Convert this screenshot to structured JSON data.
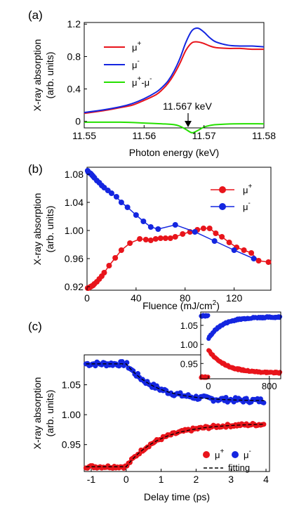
{
  "chart_data": [
    {
      "panel": "(a)",
      "type": "line",
      "xlabel": "Photon energy (keV)",
      "ylabel": [
        "X-ray absorption",
        "(arb. units)"
      ],
      "xlim": [
        11.55,
        11.58
      ],
      "ylim": [
        -0.08,
        1.22
      ],
      "xticks": [
        "11.55",
        "11.56",
        "11.57",
        "11.58"
      ],
      "yticks": [
        "0",
        "0.4",
        "0.8",
        "1.2"
      ],
      "annotation": "11.567 keV",
      "legend_position": "upper-left",
      "series": [
        {
          "name": "μ+",
          "legend_base": "μ",
          "legend_sup": "+",
          "color": "#e8141b",
          "x": [
            11.55,
            11.553,
            11.556,
            11.558,
            11.56,
            11.562,
            11.563,
            11.564,
            11.565,
            11.566,
            11.567,
            11.568,
            11.569,
            11.57,
            11.571,
            11.572,
            11.574,
            11.576,
            11.578,
            11.58
          ],
          "y": [
            0.1,
            0.13,
            0.17,
            0.2,
            0.26,
            0.33,
            0.39,
            0.47,
            0.58,
            0.72,
            0.88,
            0.97,
            0.98,
            0.96,
            0.93,
            0.91,
            0.9,
            0.9,
            0.89,
            0.89
          ]
        },
        {
          "name": "μ-",
          "legend_base": "μ",
          "legend_sup": "-",
          "color": "#1426e0",
          "x": [
            11.55,
            11.553,
            11.556,
            11.558,
            11.56,
            11.562,
            11.563,
            11.564,
            11.565,
            11.566,
            11.567,
            11.568,
            11.569,
            11.57,
            11.571,
            11.572,
            11.574,
            11.576,
            11.578,
            11.58
          ],
          "y": [
            0.11,
            0.14,
            0.18,
            0.22,
            0.28,
            0.36,
            0.42,
            0.5,
            0.62,
            0.78,
            0.98,
            1.12,
            1.15,
            1.1,
            1.03,
            0.98,
            0.94,
            0.93,
            0.93,
            0.92
          ]
        },
        {
          "name": "μ+-μ-",
          "legend_base": "μ",
          "legend_sup": "+",
          "legend_mid": "-μ",
          "legend_sup2": "-",
          "color": "#25e000",
          "x": [
            11.55,
            11.556,
            11.56,
            11.563,
            11.565,
            11.566,
            11.567,
            11.568,
            11.569,
            11.57,
            11.571,
            11.572,
            11.575,
            11.58
          ],
          "y": [
            -0.01,
            -0.01,
            -0.02,
            -0.03,
            -0.04,
            -0.06,
            -0.1,
            -0.14,
            -0.11,
            -0.07,
            -0.05,
            -0.04,
            -0.03,
            -0.03
          ]
        }
      ]
    },
    {
      "panel": "(b)",
      "type": "line",
      "xlabel": "Fluence (mJ/cm",
      "xlabel_sup": "2",
      "xlabel_end": ")",
      "ylabel": [
        "X-ray absorption",
        "(arb. units)"
      ],
      "xlim": [
        0,
        150
      ],
      "ylim": [
        0.915,
        1.09
      ],
      "xticks": [
        "0",
        "40",
        "80",
        "120"
      ],
      "yticks": [
        "0.92",
        "0.96",
        "1.00",
        "1.04",
        "1.08"
      ],
      "legend_position": "upper-right",
      "series": [
        {
          "name": "μ+",
          "legend_base": "μ",
          "legend_sup": "+",
          "color": "#e8141b",
          "x": [
            0.5,
            1,
            2,
            3,
            4,
            5,
            6,
            8,
            10,
            12,
            14,
            18,
            23,
            28,
            35,
            43,
            48,
            52,
            56,
            60,
            64,
            68,
            72,
            78,
            84,
            90,
            95,
            100,
            105,
            110,
            116,
            122,
            128,
            134,
            140,
            148
          ],
          "y": [
            0.918,
            0.918,
            0.919,
            0.92,
            0.921,
            0.922,
            0.924,
            0.927,
            0.931,
            0.935,
            0.94,
            0.95,
            0.961,
            0.972,
            0.982,
            0.988,
            0.987,
            0.986,
            0.988,
            0.989,
            0.989,
            0.989,
            0.991,
            0.995,
            0.998,
            1.001,
            1.003,
            1.003,
            0.996,
            0.991,
            0.983,
            0.976,
            0.972,
            0.968,
            0.957,
            0.955
          ]
        },
        {
          "name": "μ-",
          "legend_base": "μ",
          "legend_sup": "-",
          "color": "#1426e0",
          "x": [
            0.5,
            1,
            2,
            3,
            4,
            5,
            6,
            8,
            10,
            12,
            14,
            17,
            20,
            24,
            28,
            33,
            40,
            46,
            52,
            58,
            72,
            88,
            104,
            120,
            136
          ],
          "y": [
            1.085,
            1.083,
            1.082,
            1.081,
            1.079,
            1.077,
            1.075,
            1.071,
            1.068,
            1.064,
            1.061,
            1.057,
            1.053,
            1.048,
            1.04,
            1.033,
            1.022,
            1.013,
            1.005,
            1.002,
            1.008,
            0.998,
            0.985,
            0.972,
            0.96
          ]
        }
      ]
    },
    {
      "panel": "(c)",
      "type": "scatter",
      "xlabel": "Delay time (ps)",
      "ylabel": [
        "X-ray absorption",
        "(arb. units)"
      ],
      "xlim": [
        -1.2,
        4.1
      ],
      "ylim": [
        0.905,
        1.1
      ],
      "xticks": [
        "-1",
        "0",
        "1",
        "2",
        "3",
        "4"
      ],
      "yticks": [
        "0.95",
        "1.00",
        "1.05"
      ],
      "legend_position": "lower-right",
      "legend_fit_label": "fitting",
      "series": [
        {
          "name": "μ+",
          "legend_base": "μ",
          "legend_sup": "+",
          "color": "#e8141b",
          "model": {
            "before": 0.913,
            "after": 0.985,
            "amp": 0.07,
            "tau": 0.95,
            "noise": 0.0025
          }
        },
        {
          "name": "μ-",
          "legend_base": "μ",
          "legend_sup": "-",
          "color": "#1426e0",
          "model": {
            "before": 1.085,
            "after": 1.023,
            "amp": -0.06,
            "tau": 0.85,
            "noise": 0.004
          }
        },
        {
          "name": "fitting",
          "color": "#000000",
          "style": "dashed"
        }
      ],
      "inset": {
        "xlim": [
          -100,
          950
        ],
        "ylim": [
          0.91,
          1.085
        ],
        "xticks": [
          "0",
          "800"
        ],
        "yticks": [
          "0.95",
          "1.00",
          "1.05"
        ],
        "series": [
          {
            "name": "μ+",
            "color": "#e8141b",
            "before": 0.915,
            "peak": 0.985,
            "final": 0.925,
            "tau": 220
          },
          {
            "name": "μ-",
            "color": "#1426e0",
            "before": 1.075,
            "dip": 1.015,
            "final": 1.072,
            "tau": 180
          }
        ]
      }
    }
  ]
}
